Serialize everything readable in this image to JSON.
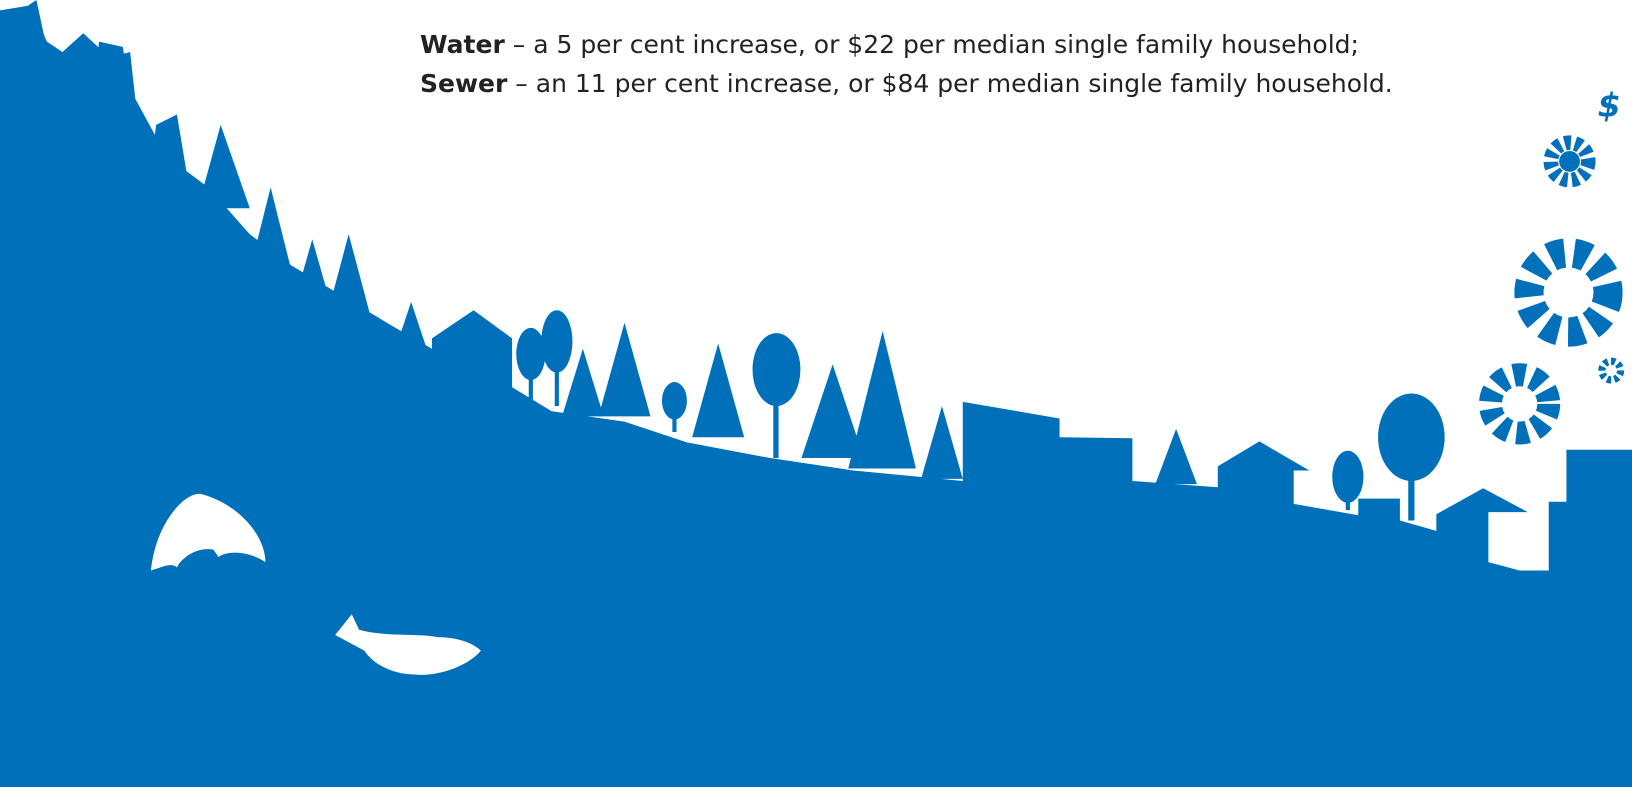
{
  "lines": [
    {
      "label": "Water",
      "text": "– a 5 per cent increase, or $22 per median single family household;"
    },
    {
      "label": "Sewer",
      "text": "– an 11 per cent increase, or $84 per median single family household."
    }
  ]
}
